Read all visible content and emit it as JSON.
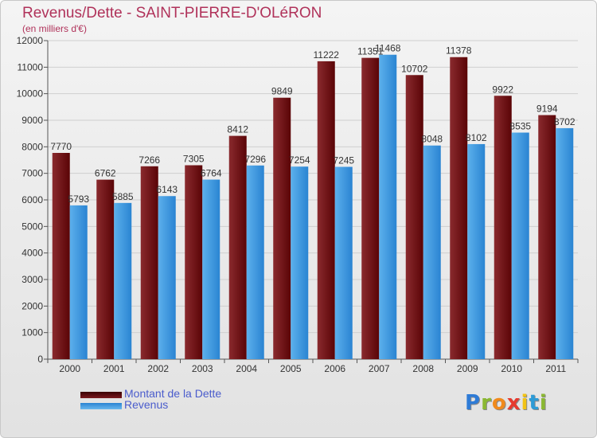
{
  "header": {
    "title": "Revenus/Dette - SAINT-PIERRE-D'OLéRON",
    "subtitle": "(en milliers d'€)"
  },
  "legend": {
    "items": [
      {
        "label": "Montant de la Dette",
        "color": "#6b0f12"
      },
      {
        "label": "Revenus",
        "color": "#3c98e0"
      }
    ]
  },
  "logo": {
    "letters": [
      "P",
      "r",
      "o",
      "x",
      "i",
      "t",
      "i"
    ]
  },
  "colors": {
    "dette_dark": "#5a0406",
    "dette_light": "#8a2a2e",
    "revenus_dark": "#2a84d2",
    "revenus_light": "#5cb0ec",
    "logo": [
      "#2e7bd6",
      "#8bb832",
      "#f08a1c",
      "#e63a2e",
      "#f2c314",
      "#2e9bd6",
      "#8bb832"
    ]
  },
  "chart_data": {
    "type": "bar",
    "title": "Revenus/Dette - SAINT-PIERRE-D'OLéRON",
    "ylabel": "(en milliers d'€)",
    "xlabel": "",
    "ylim": [
      0,
      12000
    ],
    "yticks": [
      0,
      1000,
      2000,
      3000,
      4000,
      5000,
      6000,
      7000,
      8000,
      9000,
      10000,
      11000,
      12000
    ],
    "categories": [
      "2000",
      "2001",
      "2002",
      "2003",
      "2004",
      "2005",
      "2006",
      "2007",
      "2008",
      "2009",
      "2010",
      "2011"
    ],
    "series": [
      {
        "name": "Montant de la Dette",
        "values": [
          7770,
          6762,
          7266,
          7305,
          8412,
          9849,
          11222,
          11351,
          10702,
          11378,
          9922,
          9194
        ]
      },
      {
        "name": "Revenus",
        "values": [
          5793,
          5885,
          6143,
          6764,
          7296,
          7254,
          7245,
          11468,
          8048,
          8102,
          8535,
          8702
        ]
      }
    ],
    "grid": true,
    "legend": "bottom-left"
  }
}
